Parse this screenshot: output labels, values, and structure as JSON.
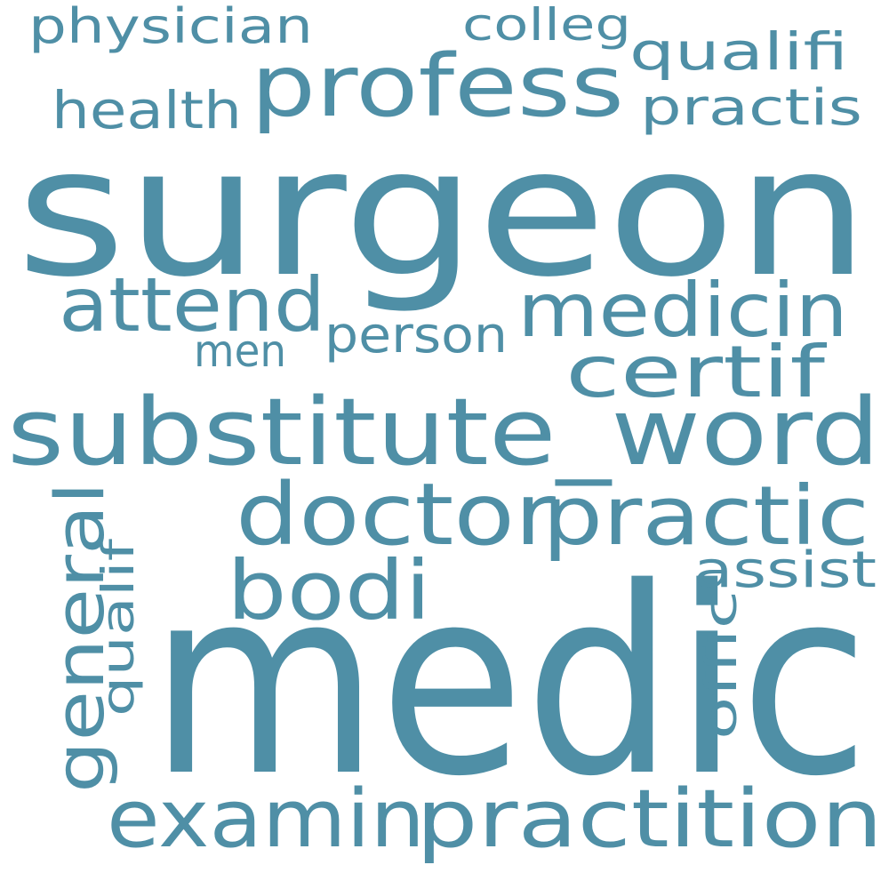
{
  "color": "#4f8fa6",
  "background": "#ffffff",
  "words": {
    "surgeon": "surgeon",
    "medic": "medic",
    "substitute_word": "substitute_word",
    "profess": "profess",
    "doctor": "doctor",
    "practic": "practic",
    "examin": "examin",
    "practition": "practition",
    "medicin": "medicin",
    "attend": "attend",
    "certif": "certif",
    "bodi": "bodi",
    "general": "general",
    "qualif": "qualif",
    "physician": "physician",
    "health": "health",
    "colleg": "colleg",
    "qualifi": "qualifi",
    "practis": "practis",
    "person": "person",
    "men": "men",
    "assist": "assist",
    "offic": "offic"
  }
}
